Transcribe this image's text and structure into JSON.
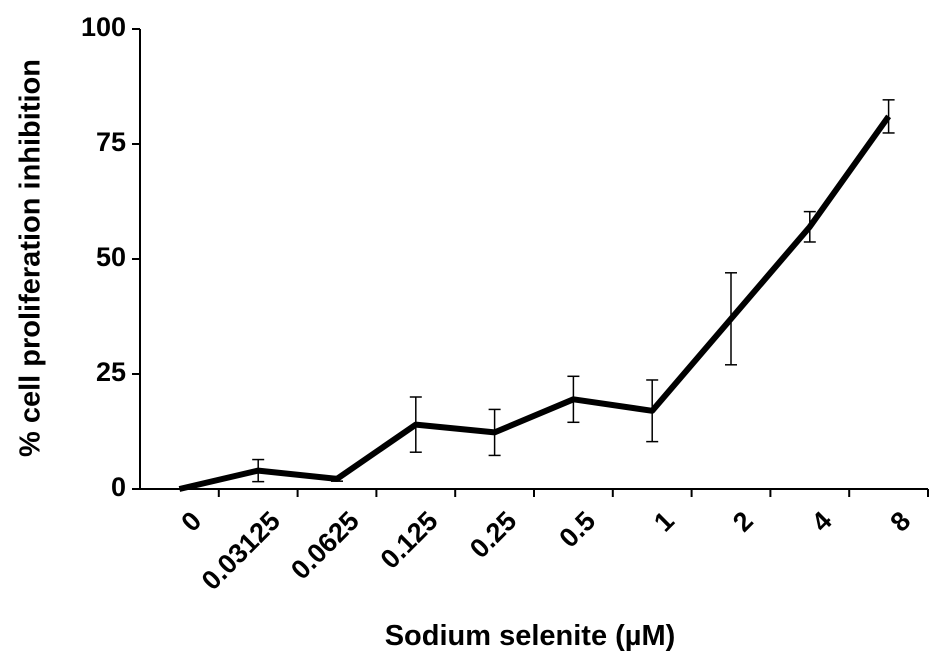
{
  "chart_data": {
    "type": "line",
    "x_label": "Sodium selenite (µM)",
    "y_label": "% cell proliferation inhibition",
    "categories": [
      "0",
      "0.03125",
      "0.0625",
      "0.125",
      "0.25",
      "0.5",
      "1",
      "2",
      "4",
      "8"
    ],
    "values": [
      0,
      4,
      2.2,
      14,
      12.3,
      19.5,
      17,
      37,
      57,
      81
    ],
    "errors": [
      0,
      2.4,
      0.5,
      6,
      5,
      5,
      6.7,
      10,
      3.3,
      3.6
    ],
    "color": "#000000",
    "ylim": [
      0,
      100
    ],
    "yticks": [
      0,
      25,
      50,
      75,
      100
    ]
  }
}
